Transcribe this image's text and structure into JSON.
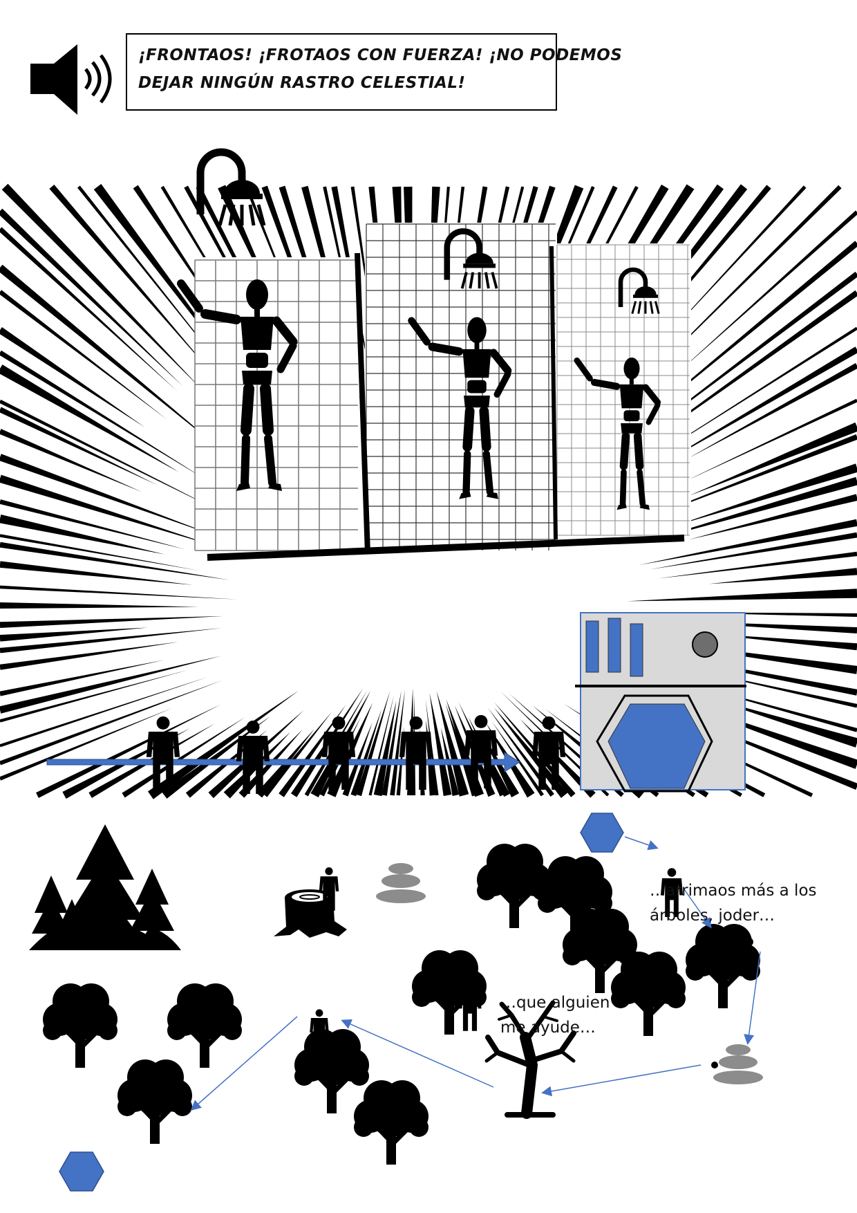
{
  "narration": {
    "lines": [
      "¡FRONTAOS! ¡FROTAOS CON FUERZA! ¡NO PODEMOS",
      "DEJAR NINGÚN RASTRO CELESTIAL!"
    ]
  },
  "speech_bubbles": [
    {
      "lines": [
        "…arrimaos más a los",
        "árboles, joder…"
      ]
    },
    {
      "lines": [
        "…que alguien",
        "me ayude…"
      ]
    }
  ],
  "icons": {
    "speaker": "speaker-sound-icon",
    "shower": "shower-head-icon",
    "figure": "wooden-mannequin-icon",
    "person": "person-icon",
    "forest": "pine-forest-icon",
    "tree": "round-tree-icon",
    "dead_tree": "bare-tree-icon",
    "stump": "tree-stump-icon",
    "stones": "stacked-stones-icon",
    "hexagon": "blue-hexagon-icon",
    "machine": "washing-machine-icon"
  },
  "colors": {
    "ink": "#000000",
    "accent_blue": "#4472c4",
    "stone_grey": "#8c8c8c",
    "machine_grey": "#d9d9d9"
  }
}
